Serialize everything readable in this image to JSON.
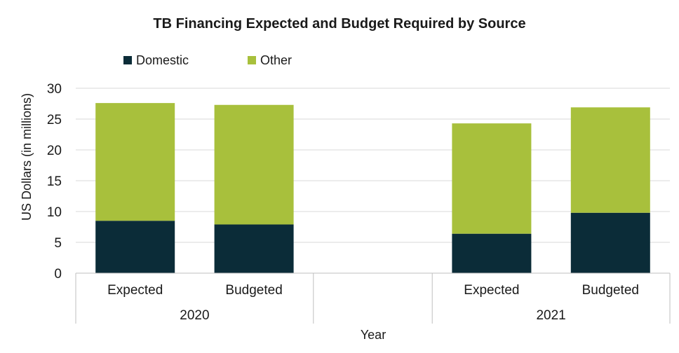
{
  "chart_data": {
    "type": "bar",
    "stacked": true,
    "title": "TB Financing Expected and Budget Required by Source",
    "xlabel": "Year",
    "ylabel": "US Dollars (in millions)",
    "ylim": [
      0,
      30
    ],
    "yticks": [
      0,
      5,
      10,
      15,
      20,
      25,
      30
    ],
    "grid": true,
    "legend_position": "top-left",
    "groups": [
      {
        "label": "2020",
        "categories": [
          "Expected",
          "Budgeted"
        ]
      },
      {
        "label": "",
        "categories": [
          ""
        ]
      },
      {
        "label": "2021",
        "categories": [
          "Expected",
          "Budgeted"
        ]
      }
    ],
    "categories": [
      "Expected",
      "Budgeted",
      "",
      "Expected",
      "Budgeted"
    ],
    "series": [
      {
        "name": "Domestic",
        "color": "#0b2c38",
        "values": [
          8.5,
          7.9,
          null,
          6.4,
          9.8
        ]
      },
      {
        "name": "Other",
        "color": "#a8c03c",
        "values": [
          19.1,
          19.4,
          null,
          17.9,
          17.1
        ]
      }
    ]
  }
}
